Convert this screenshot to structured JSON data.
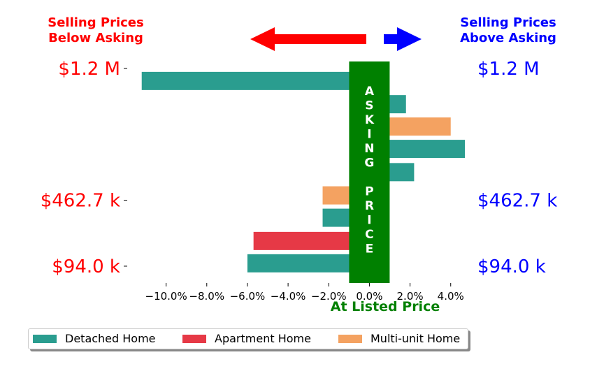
{
  "chart_data": {
    "type": "bar",
    "orientation": "horizontal",
    "left_header": [
      "Selling Prices",
      "Below Asking"
    ],
    "right_header": [
      "Selling Prices",
      "Above Asking"
    ],
    "center_band_letters": [
      "A",
      "S",
      "K",
      "I",
      "N",
      "G",
      "",
      "P",
      "R",
      "I",
      "C",
      "E"
    ],
    "xlabel": "At Listed Price",
    "x_ticks": [
      -10,
      -8,
      -6,
      -4,
      -2,
      0,
      2,
      4
    ],
    "x_tick_labels": [
      "−10.0%",
      "−8.0%",
      "−6.0%",
      "−4.0%",
      "−2.0%",
      "0.0%",
      "2.0%",
      "4.0%"
    ],
    "xlim": [
      -11.5,
      4.8
    ],
    "y_tick_labels": [
      "$1.2 M",
      "$462.7 k",
      "$94.0 k"
    ],
    "y_tick_positions": [
      1200000,
      462700,
      94000
    ],
    "ylim": [
      0,
      1278000
    ],
    "legend_position": "bottom",
    "series": [
      {
        "name": "Detached Home",
        "color": "#2a9d8f"
      },
      {
        "name": "Apartment Home",
        "color": "#e63946"
      },
      {
        "name": "Multi-unit Home",
        "color": "#f4a261"
      }
    ],
    "bars": [
      {
        "series": 0,
        "price": 1130000,
        "value": -11.2
      },
      {
        "series": 0,
        "price": 1000000,
        "value": 1.8
      },
      {
        "series": 2,
        "price": 875000,
        "value": 4.0
      },
      {
        "series": 0,
        "price": 750000,
        "value": 4.7
      },
      {
        "series": 0,
        "price": 620000,
        "value": 2.2
      },
      {
        "series": 2,
        "price": 490000,
        "value": -2.3
      },
      {
        "series": 0,
        "price": 365000,
        "value": -2.3
      },
      {
        "series": 1,
        "price": 235000,
        "value": -5.7
      },
      {
        "series": 0,
        "price": 110000,
        "value": -6.0
      }
    ],
    "colors": {
      "below": "#ff0000",
      "above": "#0000ff",
      "band": "#008000"
    }
  }
}
